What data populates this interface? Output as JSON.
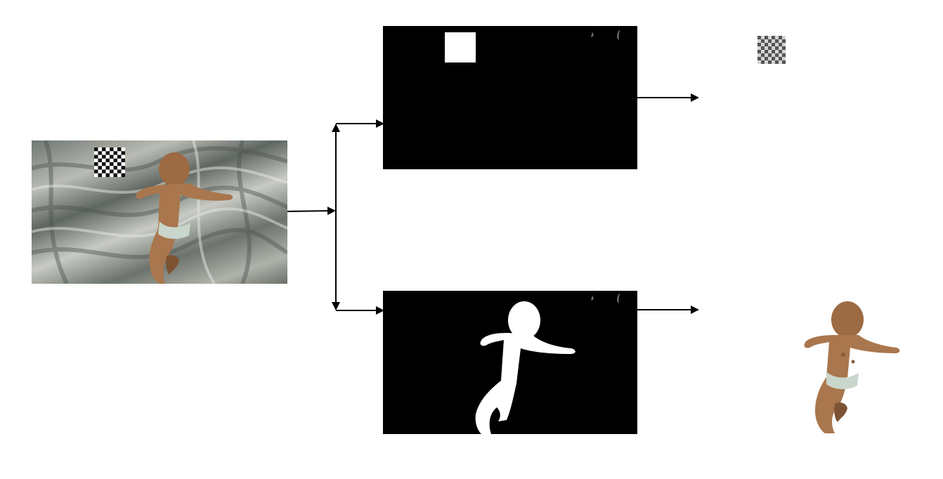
{
  "diagram": {
    "nodes": [
      {
        "id": "input-image",
        "content": "baby-on-fabric-with-checkerboard-photo"
      },
      {
        "id": "mask-checkerboard",
        "content": "binary-mask-white-square"
      },
      {
        "id": "mask-baby",
        "content": "binary-mask-baby-silhouette"
      },
      {
        "id": "output-checkerboard",
        "content": "extracted-checkerboard-patch"
      },
      {
        "id": "output-baby",
        "content": "extracted-baby-cutout"
      }
    ],
    "edges": [
      {
        "from": "input-image",
        "to": "mask-checkerboard"
      },
      {
        "from": "input-image",
        "to": "mask-baby"
      },
      {
        "from": "mask-checkerboard",
        "to": "output-checkerboard"
      },
      {
        "from": "mask-baby",
        "to": "output-baby"
      }
    ],
    "colors": {
      "mask_background": "#000000",
      "mask_foreground": "#ffffff",
      "skin": "#a9764d",
      "skin_dark": "#7d5333",
      "diaper": "#c9d6cb",
      "arrow": "#000000"
    }
  }
}
